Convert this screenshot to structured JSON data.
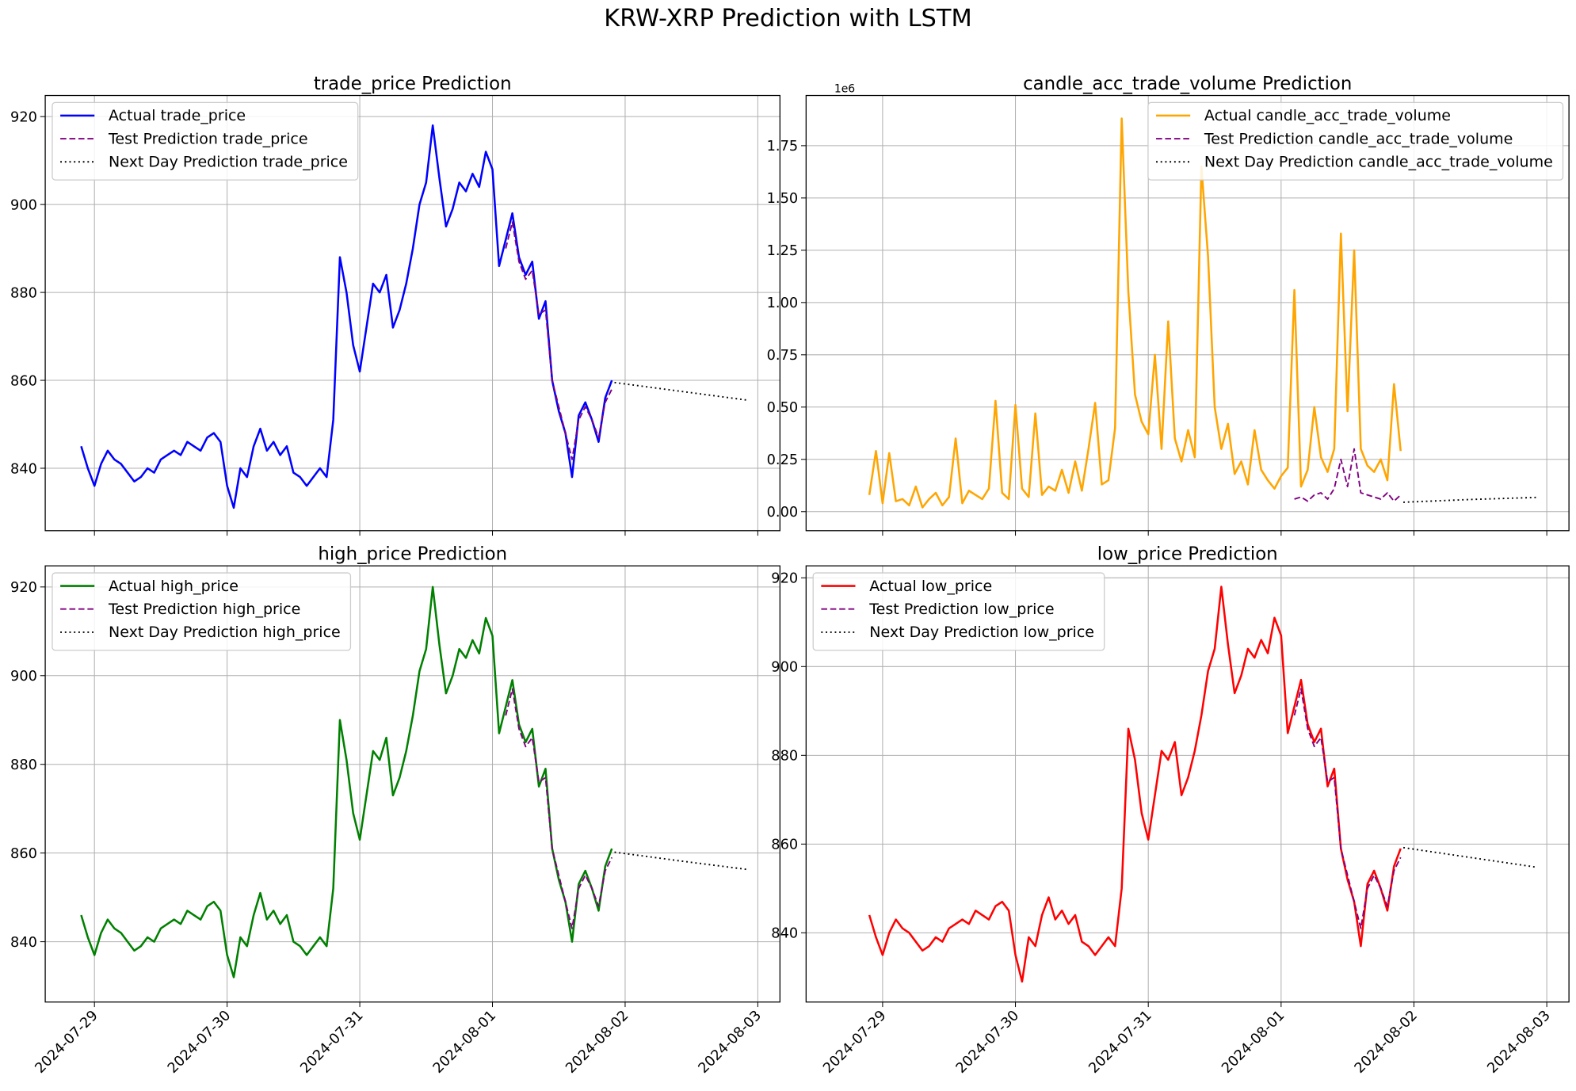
{
  "title": "KRW-XRP Prediction with LSTM",
  "chart_data": [
    {
      "type": "line",
      "title": "trade_price Prediction",
      "legend": "upper left",
      "grid": true,
      "xtick_labels": false,
      "xlim": [
        -0.371,
        5.167
      ],
      "xticks": [
        0,
        1,
        2,
        3,
        4,
        5
      ],
      "ylim": [
        825.8,
        924.8
      ],
      "yticks": [
        840,
        860,
        880,
        900,
        920
      ],
      "series": [
        {
          "name": "Actual trade_price",
          "color": "#0000ff",
          "linestyle": "solid",
          "x": [
            -0.1,
            -0.05,
            0,
            0.05,
            0.1,
            0.15,
            0.2,
            0.25,
            0.3,
            0.35,
            0.4,
            0.45,
            0.5,
            0.55,
            0.6,
            0.65,
            0.7,
            0.75,
            0.8,
            0.85,
            0.9,
            0.95,
            1,
            1.05,
            1.1,
            1.15,
            1.2,
            1.25,
            1.3,
            1.35,
            1.4,
            1.45,
            1.5,
            1.55,
            1.6,
            1.65,
            1.7,
            1.75,
            1.8,
            1.85,
            1.9,
            1.95,
            2,
            2.05,
            2.1,
            2.15,
            2.2,
            2.25,
            2.3,
            2.35,
            2.4,
            2.45,
            2.5,
            2.55,
            2.6,
            2.65,
            2.7,
            2.75,
            2.8,
            2.85,
            2.9,
            2.95,
            3,
            3.05,
            3.1,
            3.15,
            3.2,
            3.25,
            3.3,
            3.35,
            3.4,
            3.45,
            3.5,
            3.55,
            3.6,
            3.65,
            3.7,
            3.75,
            3.8,
            3.85,
            3.9
          ],
          "values": [
            845,
            840,
            836,
            841,
            844,
            842,
            841,
            839,
            837,
            838,
            840,
            839,
            842,
            843,
            844,
            843,
            846,
            845,
            844,
            847,
            848,
            846,
            836,
            831,
            840,
            838,
            845,
            849,
            844,
            846,
            843,
            845,
            839,
            838,
            836,
            838,
            840,
            838,
            851,
            888,
            880,
            868,
            862,
            872,
            882,
            880,
            884,
            872,
            876,
            882,
            890,
            900,
            905,
            918,
            906,
            895,
            899,
            905,
            903,
            907,
            904,
            912,
            908,
            886,
            892,
            898,
            888,
            884,
            887,
            874,
            878,
            860,
            853,
            848,
            838,
            852,
            855,
            851,
            846,
            856,
            860
          ]
        },
        {
          "name": "Test Prediction trade_price",
          "color": "#800080",
          "linestyle": "dashed",
          "x": [
            3.1,
            3.15,
            3.2,
            3.25,
            3.3,
            3.35,
            3.4,
            3.45,
            3.5,
            3.55,
            3.6,
            3.65,
            3.7,
            3.75,
            3.8,
            3.85,
            3.9
          ],
          "values": [
            890,
            896,
            887,
            883,
            885,
            875,
            876,
            860,
            854,
            848,
            842,
            851,
            854,
            851,
            847,
            855,
            858
          ]
        },
        {
          "name": "Next Day Prediction trade_price",
          "color": "#000000",
          "linestyle": "dotted",
          "x": [
            3.92,
            4.42,
            4.92
          ],
          "values": [
            859.5,
            857.5,
            855.5
          ]
        }
      ]
    },
    {
      "type": "line",
      "title": "candle_acc_trade_volume Prediction",
      "legend": "upper right",
      "grid": true,
      "xtick_labels": false,
      "y_offset_label": "1e6",
      "xlim": [
        -0.576,
        5.167
      ],
      "xticks": [
        0,
        1,
        2,
        3,
        4,
        5
      ],
      "ylim": [
        -91000,
        1990000
      ],
      "yticks": [
        {
          "value": 0,
          "label": "0.00"
        },
        {
          "value": 250000,
          "label": "0.25"
        },
        {
          "value": 500000,
          "label": "0.50"
        },
        {
          "value": 750000,
          "label": "0.75"
        },
        {
          "value": 1000000,
          "label": "1.00"
        },
        {
          "value": 1250000,
          "label": "1.25"
        },
        {
          "value": 1500000,
          "label": "1.50"
        },
        {
          "value": 1750000,
          "label": "1.75"
        }
      ],
      "series": [
        {
          "name": "Actual candle_acc_trade_volume",
          "color": "#ffa500",
          "linestyle": "solid",
          "x": [
            -0.1,
            -0.05,
            0,
            0.05,
            0.1,
            0.15,
            0.2,
            0.25,
            0.3,
            0.35,
            0.4,
            0.45,
            0.5,
            0.55,
            0.6,
            0.65,
            0.7,
            0.75,
            0.8,
            0.85,
            0.9,
            0.95,
            1,
            1.05,
            1.1,
            1.15,
            1.2,
            1.25,
            1.3,
            1.35,
            1.4,
            1.45,
            1.5,
            1.55,
            1.6,
            1.65,
            1.7,
            1.75,
            1.8,
            1.85,
            1.9,
            1.95,
            2,
            2.05,
            2.1,
            2.15,
            2.2,
            2.25,
            2.3,
            2.35,
            2.4,
            2.45,
            2.5,
            2.55,
            2.6,
            2.65,
            2.7,
            2.75,
            2.8,
            2.85,
            2.9,
            2.95,
            3,
            3.05,
            3.1,
            3.15,
            3.2,
            3.25,
            3.3,
            3.35,
            3.4,
            3.45,
            3.5,
            3.55,
            3.6,
            3.65,
            3.7,
            3.75,
            3.8,
            3.85,
            3.9
          ],
          "values": [
            80000,
            290000,
            40000,
            280000,
            50000,
            60000,
            30000,
            120000,
            20000,
            60000,
            90000,
            30000,
            70000,
            350000,
            40000,
            100000,
            80000,
            60000,
            110000,
            530000,
            90000,
            60000,
            510000,
            110000,
            70000,
            470000,
            80000,
            120000,
            100000,
            200000,
            90000,
            240000,
            100000,
            300000,
            520000,
            130000,
            150000,
            400000,
            1880000,
            1050000,
            560000,
            430000,
            370000,
            750000,
            300000,
            910000,
            350000,
            240000,
            390000,
            260000,
            1650000,
            1220000,
            500000,
            300000,
            420000,
            180000,
            240000,
            130000,
            390000,
            200000,
            150000,
            110000,
            170000,
            210000,
            1060000,
            120000,
            200000,
            500000,
            260000,
            190000,
            300000,
            1330000,
            480000,
            1250000,
            300000,
            220000,
            190000,
            250000,
            150000,
            610000,
            290000
          ]
        },
        {
          "name": "Test Prediction candle_acc_trade_volume",
          "color": "#800080",
          "linestyle": "dashed",
          "x": [
            3.1,
            3.15,
            3.2,
            3.25,
            3.3,
            3.35,
            3.4,
            3.45,
            3.5,
            3.55,
            3.6,
            3.65,
            3.7,
            3.75,
            3.8,
            3.85,
            3.9
          ],
          "values": [
            60000,
            70000,
            50000,
            80000,
            90000,
            60000,
            110000,
            250000,
            120000,
            300000,
            90000,
            80000,
            70000,
            60000,
            90000,
            50000,
            80000
          ]
        },
        {
          "name": "Next Day Prediction candle_acc_trade_volume",
          "color": "#000000",
          "linestyle": "dotted",
          "x": [
            3.92,
            4.42,
            4.92
          ],
          "values": [
            45000,
            58000,
            68000
          ]
        }
      ]
    },
    {
      "type": "line",
      "title": "high_price Prediction",
      "legend": "upper left",
      "grid": true,
      "xlim": [
        -0.371,
        5.167
      ],
      "xticks": [
        {
          "value": 0,
          "label": "2024-07-29"
        },
        {
          "value": 1,
          "label": "2024-07-30"
        },
        {
          "value": 2,
          "label": "2024-07-31"
        },
        {
          "value": 3,
          "label": "2024-08-01"
        },
        {
          "value": 4,
          "label": "2024-08-02"
        },
        {
          "value": 5,
          "label": "2024-08-03"
        }
      ],
      "ylim": [
        826.4,
        924.76
      ],
      "yticks": [
        840,
        860,
        880,
        900,
        920
      ],
      "series": [
        {
          "name": "Actual high_price",
          "color": "#008000",
          "linestyle": "solid",
          "x": [
            -0.1,
            -0.05,
            0,
            0.05,
            0.1,
            0.15,
            0.2,
            0.25,
            0.3,
            0.35,
            0.4,
            0.45,
            0.5,
            0.55,
            0.6,
            0.65,
            0.7,
            0.75,
            0.8,
            0.85,
            0.9,
            0.95,
            1,
            1.05,
            1.1,
            1.15,
            1.2,
            1.25,
            1.3,
            1.35,
            1.4,
            1.45,
            1.5,
            1.55,
            1.6,
            1.65,
            1.7,
            1.75,
            1.8,
            1.85,
            1.9,
            1.95,
            2,
            2.05,
            2.1,
            2.15,
            2.2,
            2.25,
            2.3,
            2.35,
            2.4,
            2.45,
            2.5,
            2.55,
            2.6,
            2.65,
            2.7,
            2.75,
            2.8,
            2.85,
            2.9,
            2.95,
            3,
            3.05,
            3.1,
            3.15,
            3.2,
            3.25,
            3.3,
            3.35,
            3.4,
            3.45,
            3.5,
            3.55,
            3.6,
            3.65,
            3.7,
            3.75,
            3.8,
            3.85,
            3.9
          ],
          "values": [
            846,
            841,
            837,
            842,
            845,
            843,
            842,
            840,
            838,
            839,
            841,
            840,
            843,
            844,
            845,
            844,
            847,
            846,
            845,
            848,
            849,
            847,
            837,
            832,
            841,
            839,
            846,
            851,
            845,
            847,
            844,
            846,
            840,
            839,
            837,
            839,
            841,
            839,
            852,
            890,
            881,
            869,
            863,
            873,
            883,
            881,
            886,
            873,
            877,
            883,
            891,
            901,
            906,
            920,
            907,
            896,
            900,
            906,
            904,
            908,
            905,
            913,
            909,
            887,
            893,
            899,
            889,
            885,
            888,
            875,
            879,
            861,
            854,
            849,
            840,
            853,
            856,
            852,
            847,
            857,
            861
          ]
        },
        {
          "name": "Test Prediction high_price",
          "color": "#800080",
          "linestyle": "dashed",
          "x": [
            3.1,
            3.15,
            3.2,
            3.25,
            3.3,
            3.35,
            3.4,
            3.45,
            3.5,
            3.55,
            3.6,
            3.65,
            3.7,
            3.75,
            3.8,
            3.85,
            3.9
          ],
          "values": [
            891,
            897,
            888,
            884,
            886,
            876,
            877,
            861,
            855,
            849,
            843,
            852,
            855,
            852,
            848,
            856,
            859
          ]
        },
        {
          "name": "Next Day Prediction high_price",
          "color": "#000000",
          "linestyle": "dotted",
          "x": [
            3.92,
            4.42,
            4.92
          ],
          "values": [
            860.2,
            858.2,
            856.3
          ]
        }
      ]
    },
    {
      "type": "line",
      "title": "low_price Prediction",
      "legend": "upper left",
      "grid": true,
      "xlim": [
        -0.576,
        5.167
      ],
      "xticks": [
        {
          "value": 0,
          "label": "2024-07-29"
        },
        {
          "value": 1,
          "label": "2024-07-30"
        },
        {
          "value": 2,
          "label": "2024-07-31"
        },
        {
          "value": 3,
          "label": "2024-08-01"
        },
        {
          "value": 4,
          "label": "2024-08-02"
        },
        {
          "value": 5,
          "label": "2024-08-03"
        }
      ],
      "ylim": [
        824.4,
        922.7
      ],
      "yticks": [
        840,
        860,
        880,
        900,
        920
      ],
      "series": [
        {
          "name": "Actual low_price",
          "color": "#ff0000",
          "linestyle": "solid",
          "x": [
            -0.1,
            -0.05,
            0,
            0.05,
            0.1,
            0.15,
            0.2,
            0.25,
            0.3,
            0.35,
            0.4,
            0.45,
            0.5,
            0.55,
            0.6,
            0.65,
            0.7,
            0.75,
            0.8,
            0.85,
            0.9,
            0.95,
            1,
            1.05,
            1.1,
            1.15,
            1.2,
            1.25,
            1.3,
            1.35,
            1.4,
            1.45,
            1.5,
            1.55,
            1.6,
            1.65,
            1.7,
            1.75,
            1.8,
            1.85,
            1.9,
            1.95,
            2,
            2.05,
            2.1,
            2.15,
            2.2,
            2.25,
            2.3,
            2.35,
            2.4,
            2.45,
            2.5,
            2.55,
            2.6,
            2.65,
            2.7,
            2.75,
            2.8,
            2.85,
            2.9,
            2.95,
            3,
            3.05,
            3.1,
            3.15,
            3.2,
            3.25,
            3.3,
            3.35,
            3.4,
            3.45,
            3.5,
            3.55,
            3.6,
            3.65,
            3.7,
            3.75,
            3.8,
            3.85,
            3.9
          ],
          "values": [
            844,
            839,
            835,
            840,
            843,
            841,
            840,
            838,
            836,
            837,
            839,
            838,
            841,
            842,
            843,
            842,
            845,
            844,
            843,
            846,
            847,
            845,
            835,
            829,
            839,
            837,
            844,
            848,
            843,
            845,
            842,
            844,
            838,
            837,
            835,
            837,
            839,
            837,
            850,
            886,
            879,
            867,
            861,
            871,
            881,
            879,
            883,
            871,
            875,
            881,
            889,
            899,
            904,
            918,
            905,
            894,
            898,
            904,
            902,
            906,
            903,
            911,
            907,
            885,
            891,
            897,
            887,
            883,
            886,
            873,
            877,
            859,
            852,
            847,
            837,
            851,
            854,
            850,
            845,
            855,
            859
          ]
        },
        {
          "name": "Test Prediction low_price",
          "color": "#800080",
          "linestyle": "dashed",
          "x": [
            3.1,
            3.15,
            3.2,
            3.25,
            3.3,
            3.35,
            3.4,
            3.45,
            3.5,
            3.55,
            3.6,
            3.65,
            3.7,
            3.75,
            3.8,
            3.85,
            3.9
          ],
          "values": [
            889,
            895,
            886,
            882,
            884,
            874,
            875,
            859,
            853,
            847,
            841,
            850,
            853,
            850,
            846,
            854,
            857
          ]
        },
        {
          "name": "Next Day Prediction low_price",
          "color": "#000000",
          "linestyle": "dotted",
          "x": [
            3.92,
            4.42,
            4.92
          ],
          "values": [
            859.2,
            857.0,
            854.8
          ]
        }
      ]
    }
  ]
}
